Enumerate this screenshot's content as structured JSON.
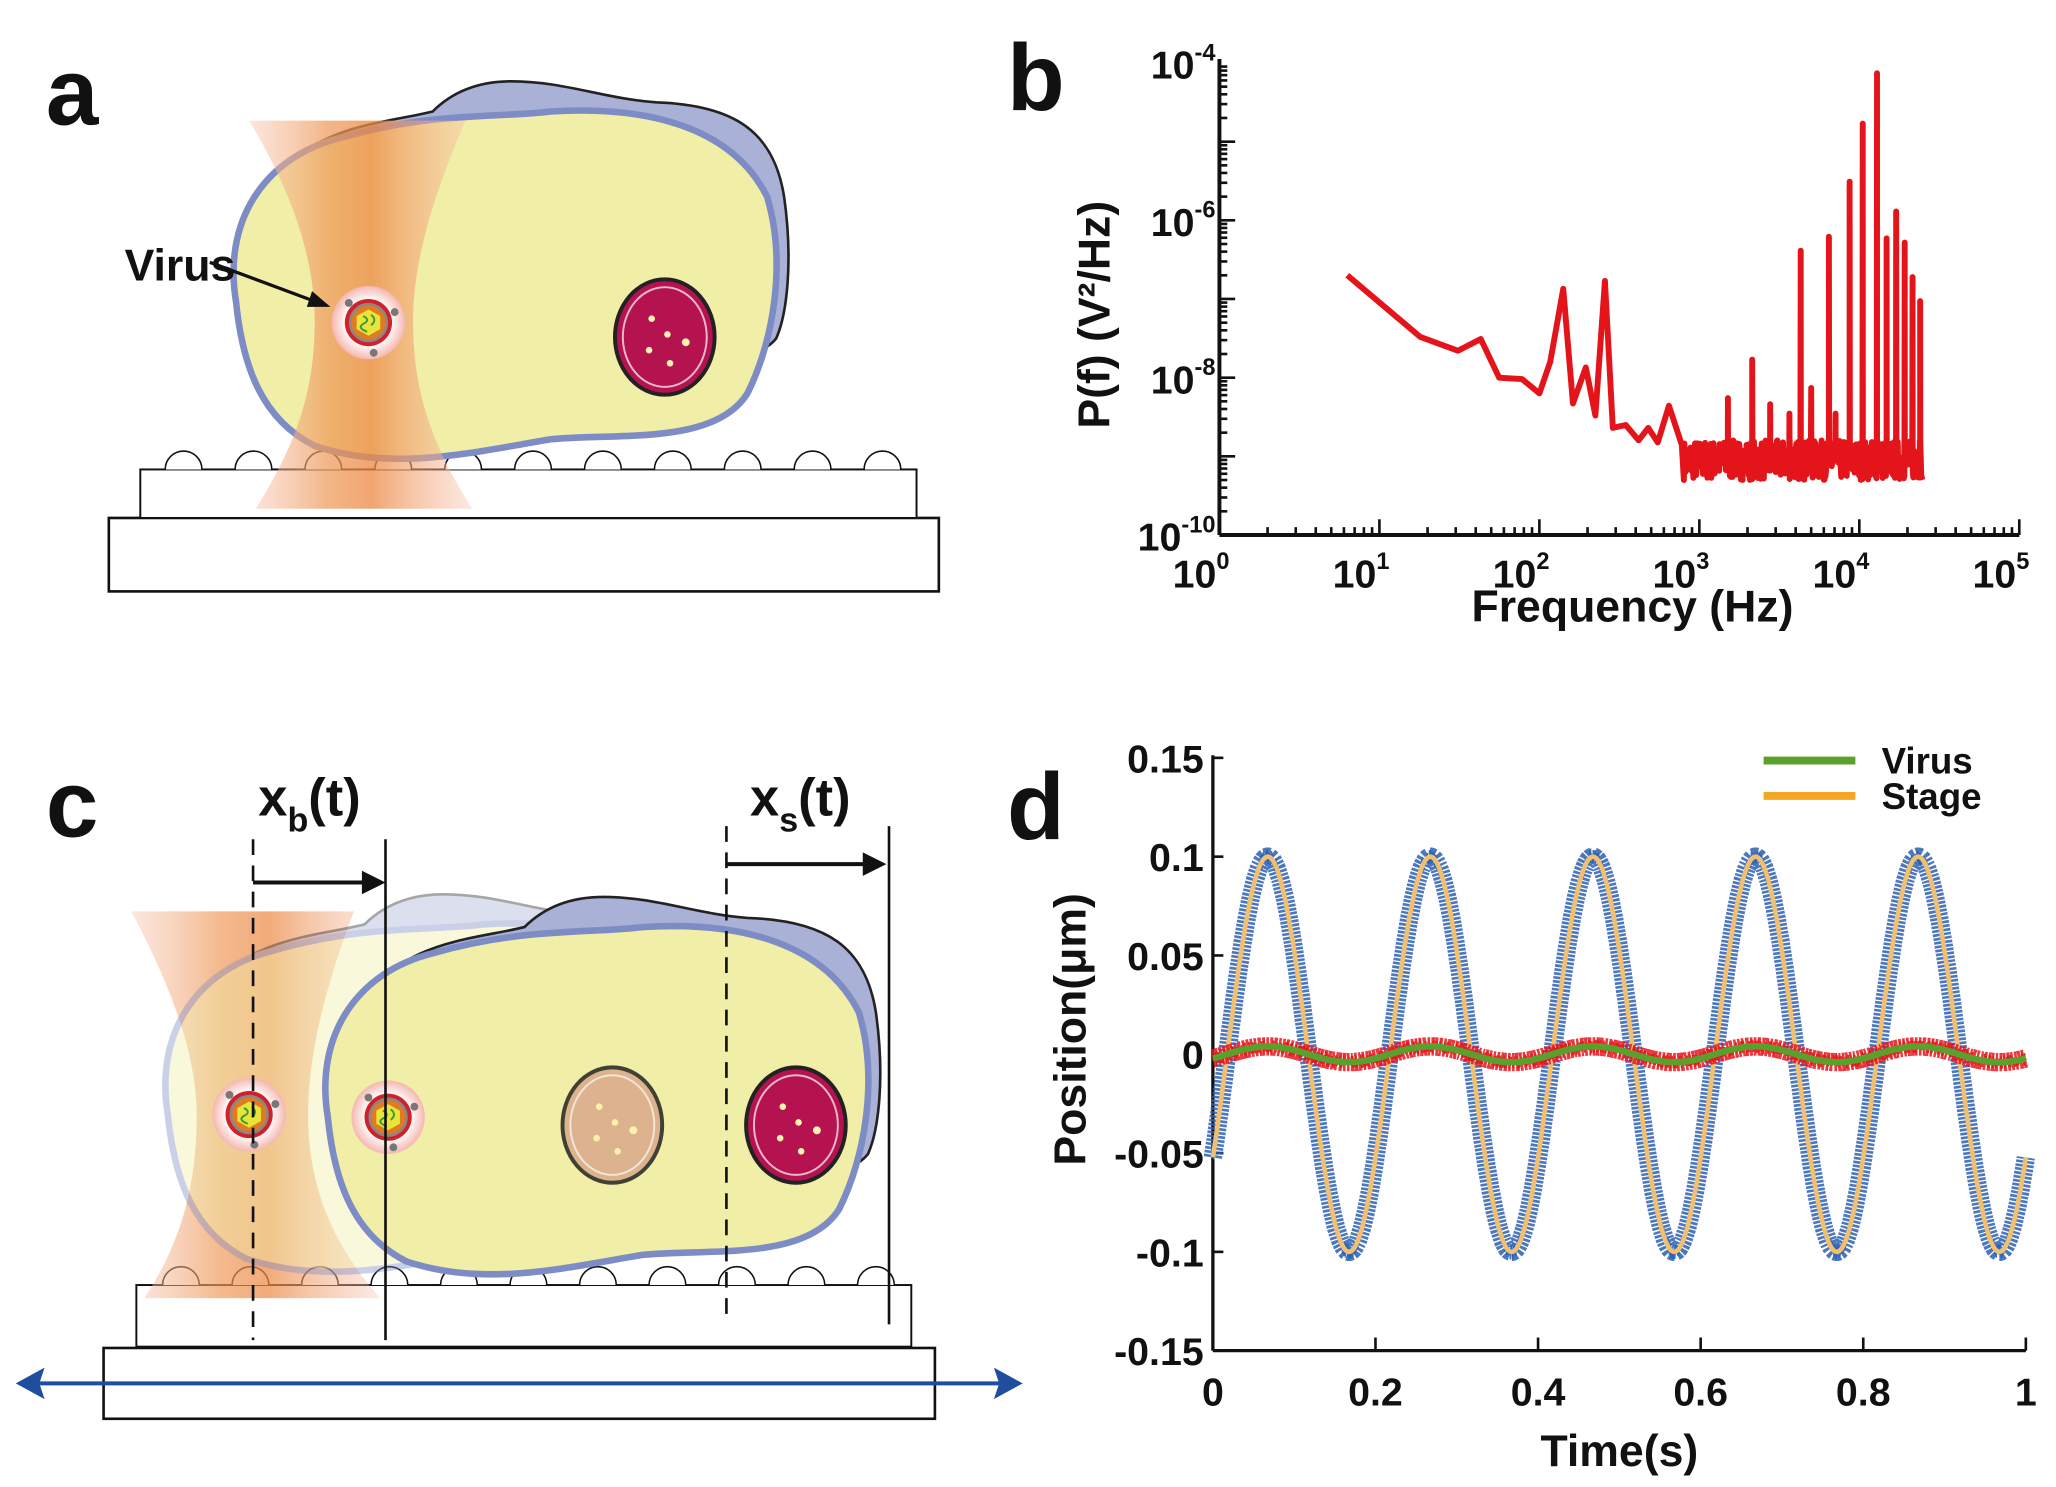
{
  "panels": {
    "a": {
      "label": "a",
      "virus_label": "Virus"
    },
    "b": {
      "label": "b"
    },
    "c": {
      "label": "c",
      "xb": {
        "main": "x",
        "sub": "b",
        "tail": "(t)"
      },
      "xs": {
        "main": "x",
        "sub": "s",
        "tail": "(t)"
      }
    },
    "d": {
      "label": "d"
    }
  },
  "colors": {
    "cytoplasm": "#f1eea8",
    "membrane": "#7d8cc4",
    "cell_back": "#a9b1d6",
    "nucleus": "#b5134f",
    "nucleus_faded": "#d9a98a",
    "beam_core": "#ee8a4a",
    "stage_arrow": "#1f4e9c"
  },
  "chart_data": [
    {
      "panel": "b",
      "type": "line",
      "xlabel": "Frequency (Hz)",
      "ylabel": "P(f) (V²/Hz)",
      "xscale": "log",
      "yscale": "log",
      "xlim": [
        1,
        100000
      ],
      "ylim": [
        1e-10,
        0.0001
      ],
      "xticks": [
        {
          "base": "10",
          "exp": "0",
          "v": 1
        },
        {
          "base": "10",
          "exp": "1",
          "v": 10
        },
        {
          "base": "10",
          "exp": "2",
          "v": 100
        },
        {
          "base": "10",
          "exp": "3",
          "v": 1000
        },
        {
          "base": "10",
          "exp": "4",
          "v": 10000
        },
        {
          "base": "10",
          "exp": "5",
          "v": 100000
        }
      ],
      "yticks": [
        {
          "base": "10",
          "exp": "-4",
          "v": 0.0001
        },
        {
          "base": "10",
          "exp": "-6",
          "v": 1e-06
        },
        {
          "base": "10",
          "exp": "-8",
          "v": 1e-08
        },
        {
          "base": "10",
          "exp": "-10",
          "v": 1e-10
        }
      ],
      "grid": false,
      "color": "#e3151b",
      "points": [
        [
          6.3,
          2e-07
        ],
        [
          18,
          3.3e-08
        ],
        [
          31,
          2.2e-08
        ],
        [
          43,
          3.1e-08
        ],
        [
          56,
          1e-08
        ],
        [
          78,
          9.6e-09
        ],
        [
          100,
          6.3e-09
        ],
        [
          117,
          1.6e-08
        ],
        [
          141,
          1.35e-07
        ],
        [
          162,
          4.7e-09
        ],
        [
          195,
          1.35e-08
        ],
        [
          224,
          3.3e-09
        ],
        [
          257,
          1.7e-07
        ],
        [
          288,
          2.3e-09
        ],
        [
          347,
          2.5e-09
        ],
        [
          417,
          1.6e-09
        ],
        [
          479,
          2.3e-09
        ],
        [
          550,
          1.5e-09
        ],
        [
          646,
          4.4e-09
        ],
        [
          776,
          1.4e-09
        ]
      ],
      "noise_floor": {
        "f_range": [
          800,
          24800
        ],
        "band": [
          5e-10,
          1.6e-09
        ]
      },
      "peaks": [
        [
          1510,
          5.5e-09
        ],
        [
          2140,
          1.7e-08
        ],
        [
          2770,
          4.6e-09
        ],
        [
          3660,
          3.5e-09
        ],
        [
          4300,
          4.1e-07
        ],
        [
          5000,
          7.4e-09
        ],
        [
          6460,
          6.2e-07
        ],
        [
          7100,
          3.5e-09
        ],
        [
          8700,
          3.1e-06
        ],
        [
          10500,
          1.7e-05
        ],
        [
          12900,
          7.4e-05
        ],
        [
          14800,
          5.9e-07
        ],
        [
          17000,
          1.3e-06
        ],
        [
          19200,
          5.2e-07
        ],
        [
          21500,
          1.9e-07
        ],
        [
          24000,
          9.4e-08
        ]
      ]
    },
    {
      "panel": "d",
      "type": "line",
      "xlabel": "Time(s)",
      "ylabel": "Position(μm)",
      "xlim": [
        0,
        1
      ],
      "ylim": [
        -0.15,
        0.15
      ],
      "xticks": [
        "0",
        "0.2",
        "0.4",
        "0.6",
        "0.8",
        "1"
      ],
      "yticks": [
        "0.15",
        "0.1",
        "0.05",
        "0",
        "-0.05",
        "-0.1",
        "-0.15"
      ],
      "grid": false,
      "legend": {
        "placement": "top-right",
        "entries": [
          {
            "name": "Virus",
            "color": "#5aa02c"
          },
          {
            "name": "Stage",
            "color": "#f5a623"
          }
        ]
      },
      "series": [
        {
          "name": "Virus",
          "amplitude": 0.004,
          "frequency_hz": 5,
          "phase_delay_s": 0.0175,
          "fit_color": "#5aa02c",
          "marker_color": "#e8141c"
        },
        {
          "name": "Stage",
          "amplitude": 0.1,
          "frequency_hz": 5,
          "phase_delay_s": 0.0175,
          "fit_color": "#f0c070",
          "marker_color": "#2b5fb4"
        }
      ]
    }
  ]
}
